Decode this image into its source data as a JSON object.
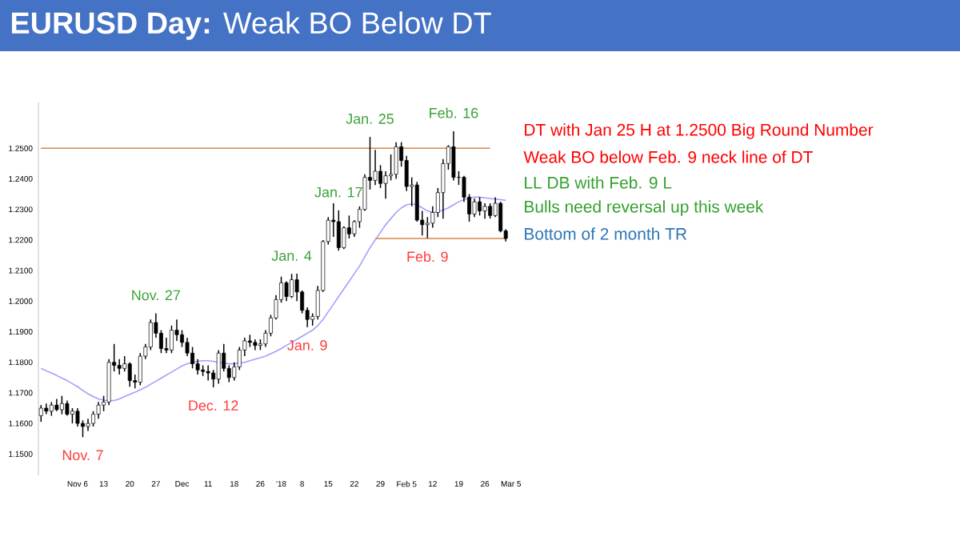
{
  "chart_data": {
    "type": "candlestick",
    "title": "**EURUSD Day:** Weak BO Below DT",
    "categories": [
      null,
      null,
      null,
      null,
      null,
      null,
      null,
      "Nov 6",
      null,
      null,
      null,
      null,
      "13",
      null,
      null,
      null,
      null,
      "20",
      null,
      null,
      null,
      null,
      "27",
      null,
      null,
      null,
      null,
      "Dec",
      null,
      null,
      null,
      null,
      "11",
      null,
      null,
      null,
      null,
      "18",
      null,
      null,
      null,
      null,
      "26",
      null,
      null,
      null,
      "'18",
      null,
      null,
      null,
      "8",
      null,
      null,
      null,
      null,
      "15",
      null,
      null,
      null,
      null,
      "22",
      null,
      null,
      null,
      null,
      "29",
      null,
      null,
      null,
      null,
      "Feb 5",
      null,
      null,
      null,
      null,
      "12",
      null,
      null,
      null,
      null,
      "19",
      null,
      null,
      null,
      null,
      "26",
      null,
      null,
      null,
      null,
      "Mar 5"
    ],
    "ohlc": [
      [
        1.1625,
        1.166,
        1.1605,
        1.165
      ],
      [
        1.165,
        1.1665,
        1.163,
        1.164
      ],
      [
        1.164,
        1.167,
        1.1625,
        1.166
      ],
      [
        1.166,
        1.168,
        1.164,
        1.1645
      ],
      [
        1.1645,
        1.169,
        1.163,
        1.1665
      ],
      [
        1.1665,
        1.1675,
        1.1625,
        1.163
      ],
      [
        1.163,
        1.165,
        1.16,
        1.164
      ],
      [
        1.164,
        1.165,
        1.159,
        1.16
      ],
      [
        1.16,
        1.161,
        1.1555,
        1.159
      ],
      [
        1.159,
        1.1615,
        1.1575,
        1.16
      ],
      [
        1.16,
        1.164,
        1.159,
        1.163
      ],
      [
        1.163,
        1.167,
        1.1615,
        1.166
      ],
      [
        1.166,
        1.169,
        1.164,
        1.167
      ],
      [
        1.167,
        1.181,
        1.166,
        1.18
      ],
      [
        1.18,
        1.186,
        1.177,
        1.179
      ],
      [
        1.179,
        1.181,
        1.176,
        1.178
      ],
      [
        1.178,
        1.182,
        1.177,
        1.1795
      ],
      [
        1.1795,
        1.18,
        1.172,
        1.174
      ],
      [
        1.174,
        1.176,
        1.1715,
        1.1735
      ],
      [
        1.1735,
        1.183,
        1.1725,
        1.182
      ],
      [
        1.182,
        1.186,
        1.181,
        1.185
      ],
      [
        1.185,
        1.194,
        1.184,
        1.193
      ],
      [
        1.193,
        1.196,
        1.188,
        1.1895
      ],
      [
        1.1895,
        1.1905,
        1.183,
        1.1845
      ],
      [
        1.1845,
        1.188,
        1.183,
        1.184
      ],
      [
        1.184,
        1.192,
        1.183,
        1.1905
      ],
      [
        1.1905,
        1.194,
        1.187,
        1.189
      ],
      [
        1.189,
        1.1905,
        1.185,
        1.1865
      ],
      [
        1.1865,
        1.188,
        1.182,
        1.183
      ],
      [
        1.183,
        1.185,
        1.178,
        1.1795
      ],
      [
        1.1795,
        1.181,
        1.176,
        1.1775
      ],
      [
        1.1775,
        1.179,
        1.1755,
        1.177
      ],
      [
        1.177,
        1.179,
        1.174,
        1.1765
      ],
      [
        1.1765,
        1.1775,
        1.1718,
        1.1745
      ],
      [
        1.1745,
        1.184,
        1.173,
        1.183
      ],
      [
        1.183,
        1.186,
        1.177,
        1.178
      ],
      [
        1.178,
        1.179,
        1.1735,
        1.175
      ],
      [
        1.175,
        1.18,
        1.174,
        1.1785
      ],
      [
        1.1785,
        1.185,
        1.1775,
        1.184
      ],
      [
        1.184,
        1.188,
        1.182,
        1.187
      ],
      [
        1.187,
        1.189,
        1.185,
        1.1865
      ],
      [
        1.1865,
        1.1875,
        1.184,
        1.1855
      ],
      [
        1.1855,
        1.1875,
        1.184,
        1.186
      ],
      [
        1.186,
        1.1905,
        1.185,
        1.1895
      ],
      [
        1.1895,
        1.1955,
        1.1885,
        1.1945
      ],
      [
        1.1945,
        1.202,
        1.194,
        1.2005
      ],
      [
        1.2005,
        1.208,
        1.1995,
        1.206
      ],
      [
        1.206,
        1.2065,
        1.2,
        1.2015
      ],
      [
        1.2015,
        1.2089,
        1.201,
        1.207
      ],
      [
        1.207,
        1.209,
        1.2,
        1.203
      ],
      [
        1.203,
        1.2035,
        1.196,
        1.197
      ],
      [
        1.197,
        1.198,
        1.1915,
        1.194
      ],
      [
        1.194,
        1.196,
        1.192,
        1.195
      ],
      [
        1.195,
        1.205,
        1.194,
        1.2035
      ],
      [
        1.2035,
        1.22,
        1.203,
        1.2195
      ],
      [
        1.2195,
        1.2275,
        1.2185,
        1.2265
      ],
      [
        1.2265,
        1.232,
        1.221,
        1.226
      ],
      [
        1.226,
        1.2297,
        1.2165,
        1.2175
      ],
      [
        1.2175,
        1.2245,
        1.217,
        1.224
      ],
      [
        1.224,
        1.228,
        1.2205,
        1.222
      ],
      [
        1.222,
        1.2265,
        1.221,
        1.226
      ],
      [
        1.226,
        1.231,
        1.224,
        1.23
      ],
      [
        1.23,
        1.2415,
        1.2295,
        1.2405
      ],
      [
        1.2405,
        1.2537,
        1.2365,
        1.2395
      ],
      [
        1.2395,
        1.2495,
        1.238,
        1.2425
      ],
      [
        1.2425,
        1.2445,
        1.237,
        1.2385
      ],
      [
        1.2385,
        1.2425,
        1.2335,
        1.241
      ],
      [
        1.241,
        1.248,
        1.2395,
        1.2415
      ],
      [
        1.2415,
        1.252,
        1.24,
        1.2505
      ],
      [
        1.2505,
        1.252,
        1.244,
        1.246
      ],
      [
        1.246,
        1.2475,
        1.236,
        1.2375
      ],
      [
        1.2375,
        1.2405,
        1.231,
        1.238
      ],
      [
        1.238,
        1.239,
        1.226,
        1.2265
      ],
      [
        1.2265,
        1.2295,
        1.2215,
        1.225
      ],
      [
        1.225,
        1.2275,
        1.2206,
        1.2255
      ],
      [
        1.2255,
        1.231,
        1.224,
        1.229
      ],
      [
        1.229,
        1.237,
        1.2275,
        1.2355
      ],
      [
        1.2355,
        1.2465,
        1.227,
        1.245
      ],
      [
        1.245,
        1.251,
        1.243,
        1.2505
      ],
      [
        1.2505,
        1.2556,
        1.2395,
        1.2405
      ],
      [
        1.2405,
        1.2425,
        1.238,
        1.2405
      ],
      [
        1.2405,
        1.241,
        1.2325,
        1.234
      ],
      [
        1.234,
        1.235,
        1.226,
        1.2285
      ],
      [
        1.2285,
        1.2335,
        1.2275,
        1.2325
      ],
      [
        1.2325,
        1.234,
        1.228,
        1.2295
      ],
      [
        1.2295,
        1.232,
        1.227,
        1.231
      ],
      [
        1.231,
        1.232,
        1.227,
        1.228
      ],
      [
        1.228,
        1.234,
        1.2275,
        1.232
      ],
      [
        1.232,
        1.2325,
        1.2225,
        1.223
      ],
      [
        1.223,
        1.2235,
        1.2195,
        1.2205
      ],
      null
    ],
    "series": [
      {
        "type": "line",
        "color": "#a0a0ff",
        "values": [
          1.178,
          1.1772,
          1.1765,
          1.1757,
          1.1748,
          1.174,
          1.173,
          1.172,
          1.1708,
          1.1697,
          1.1688,
          1.168,
          1.1676,
          1.1674,
          1.1675,
          1.168,
          1.1688,
          1.1695,
          1.1702,
          1.171,
          1.1718,
          1.1728,
          1.1738,
          1.1748,
          1.1758,
          1.1768,
          1.1778,
          1.1788,
          1.1795,
          1.18,
          1.1803,
          1.1805,
          1.1805,
          1.1803,
          1.18,
          1.1798,
          1.1795,
          1.1795,
          1.1797,
          1.18,
          1.1805,
          1.181,
          1.1815,
          1.182,
          1.1828,
          1.1836,
          1.1845,
          1.1855,
          1.1865,
          1.1875,
          1.1885,
          1.1895,
          1.1905,
          1.192,
          1.194,
          1.1965,
          1.199,
          1.2015,
          1.204,
          1.2065,
          1.209,
          1.2115,
          1.2145,
          1.2175,
          1.22,
          1.2225,
          1.225,
          1.227,
          1.229,
          1.2305,
          1.2315,
          1.2318,
          1.2315,
          1.2305,
          1.2295,
          1.229,
          1.2292,
          1.2298,
          1.2305,
          1.2315,
          1.2325,
          1.2332,
          1.2338,
          1.234,
          1.234,
          1.2338,
          1.2336,
          1.2334,
          1.2332,
          1.233,
          null
        ]
      },
      {
        "type": "line",
        "color": "#d9864a",
        "values": [
          1.25,
          1.25,
          1.25,
          1.25,
          1.25,
          1.25,
          1.25,
          1.25,
          1.25,
          1.25,
          1.25,
          1.25,
          1.25,
          1.25,
          1.25,
          1.25,
          1.25,
          1.25,
          1.25,
          1.25,
          1.25,
          1.25,
          1.25,
          1.25,
          1.25,
          1.25,
          1.25,
          1.25,
          1.25,
          1.25,
          1.25,
          1.25,
          1.25,
          1.25,
          1.25,
          1.25,
          1.25,
          1.25,
          1.25,
          1.25,
          1.25,
          1.25,
          1.25,
          1.25,
          1.25,
          1.25,
          1.25,
          1.25,
          1.25,
          1.25,
          1.25,
          1.25,
          1.25,
          1.25,
          1.25,
          1.25,
          1.25,
          1.25,
          1.25,
          1.25,
          1.25,
          1.25,
          1.25,
          1.25,
          1.25,
          1.25,
          1.25,
          1.25,
          1.25,
          1.25,
          1.25,
          1.25,
          1.25,
          1.25,
          1.25,
          1.25,
          1.25,
          1.25,
          1.25,
          1.25,
          1.25,
          1.25,
          1.25,
          1.25,
          1.25,
          1.25,
          1.25,
          null,
          null,
          null,
          null
        ]
      },
      {
        "type": "line",
        "color": "#d9864a",
        "values": [
          null,
          null,
          null,
          null,
          null,
          null,
          null,
          null,
          null,
          null,
          null,
          null,
          null,
          null,
          null,
          null,
          null,
          null,
          null,
          null,
          null,
          null,
          null,
          null,
          null,
          null,
          null,
          null,
          null,
          null,
          null,
          null,
          null,
          null,
          null,
          null,
          null,
          null,
          null,
          null,
          null,
          null,
          null,
          null,
          null,
          null,
          null,
          null,
          null,
          null,
          null,
          null,
          null,
          null,
          null,
          null,
          null,
          null,
          null,
          null,
          null,
          null,
          null,
          null,
          1.2205,
          1.2205,
          1.2205,
          1.2205,
          1.2205,
          1.2205,
          1.2205,
          1.2205,
          1.2205,
          1.2205,
          1.2205,
          1.2205,
          1.2205,
          1.2205,
          1.2205,
          1.2205,
          1.2205,
          1.2205,
          1.2205,
          1.2205,
          1.2205,
          1.2205,
          1.2205,
          1.2205,
          1.2205,
          1.2205,
          null
        ]
      }
    ],
    "ylim": [
      1.143,
      1.265
    ],
    "yticks": [
      {
        "value": 1.15,
        "label": "1.1500"
      },
      {
        "value": 1.16,
        "label": "1.1600"
      },
      {
        "value": 1.17,
        "label": "1.1700"
      },
      {
        "value": 1.18,
        "label": "1.1800"
      },
      {
        "value": 1.19,
        "label": "1.1900"
      },
      {
        "value": 1.2,
        "label": "1.2000"
      },
      {
        "value": 1.21,
        "label": "1.2100"
      },
      {
        "value": 1.22,
        "label": "1.2200"
      },
      {
        "value": 1.23,
        "label": "1.2300"
      },
      {
        "value": 1.24,
        "label": "1.2400"
      },
      {
        "value": 1.25,
        "label": "1.2500"
      }
    ],
    "annotations": [
      {
        "text": "Nov. 7",
        "y": 1.1555
      },
      {
        "text": "Nov. 27",
        "y": 1.196
      },
      {
        "text": "Dec. 12",
        "y": 1.1718
      },
      {
        "text": "Jan. 4",
        "y": 1.2089
      },
      {
        "text": "Jan. 9",
        "y": 1.1915
      },
      {
        "text": "Jan. 17",
        "y": 1.2297
      },
      {
        "text": "Jan. 25",
        "y": 1.2537
      },
      {
        "text": "Feb. 9",
        "y": 1.2206
      },
      {
        "text": "Feb. 16",
        "y": 1.2556
      },
      "DT with Jan 25 H at 1.2500 Big Round Number",
      "Weak BO below Feb. 9 neck line of DT",
      "LL DB with Feb. 9 L",
      "Bulls need reversal up this week",
      "Bottom of 2 month TR"
    ]
  }
}
